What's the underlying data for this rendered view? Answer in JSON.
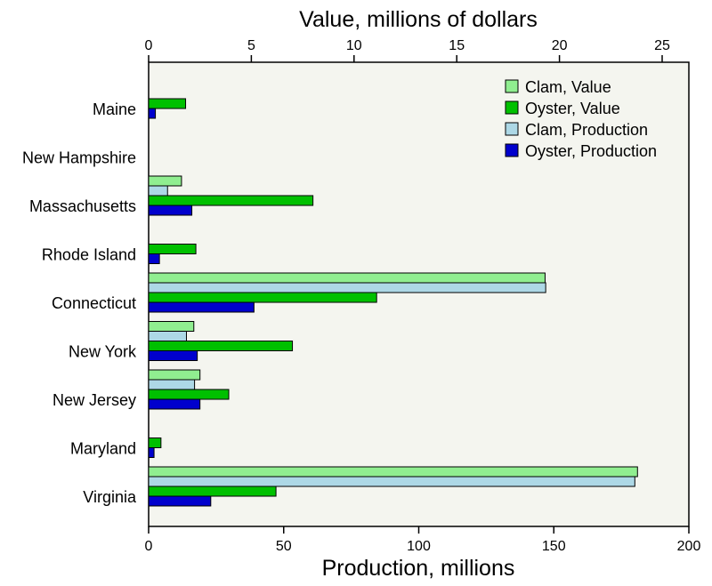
{
  "chart_data": {
    "type": "bar",
    "orientation": "horizontal",
    "categories": [
      "Maine",
      "New Hampshire",
      "Massachusetts",
      "Rhode Island",
      "Connecticut",
      "New York",
      "New Jersey",
      "Maryland",
      "Virginia"
    ],
    "series": [
      {
        "name": "Clam, Value",
        "axis": "top",
        "color": "#90ee90",
        "values": [
          null,
          null,
          1.6,
          null,
          19.3,
          2.2,
          2.5,
          null,
          23.8
        ]
      },
      {
        "name": "Oyster, Value",
        "axis": "top",
        "color": "#00c000",
        "values": [
          1.8,
          null,
          8.0,
          2.3,
          11.1,
          7.0,
          3.9,
          0.6,
          6.2
        ]
      },
      {
        "name": "Clam, Production",
        "axis": "bottom",
        "color": "#add8e6",
        "values": [
          null,
          null,
          7,
          null,
          147,
          14,
          17,
          null,
          180
        ]
      },
      {
        "name": "Oyster, Production",
        "axis": "bottom",
        "color": "#0000cd",
        "values": [
          2.5,
          null,
          16,
          4,
          39,
          18,
          19,
          2,
          23
        ]
      }
    ],
    "xlabel_bottom": "Production, millions",
    "xlabel_top": "Value, millions of dollars",
    "xlim_bottom": [
      0,
      200
    ],
    "xlim_top": [
      0,
      26.3
    ],
    "xticks_bottom": [
      "0",
      "50",
      "100",
      "150",
      "200"
    ],
    "xticks_top": [
      "0",
      "5",
      "10",
      "15",
      "20",
      "25"
    ],
    "legend_position": "top-right",
    "plot_background": "#f4f5ef",
    "grid": false
  }
}
